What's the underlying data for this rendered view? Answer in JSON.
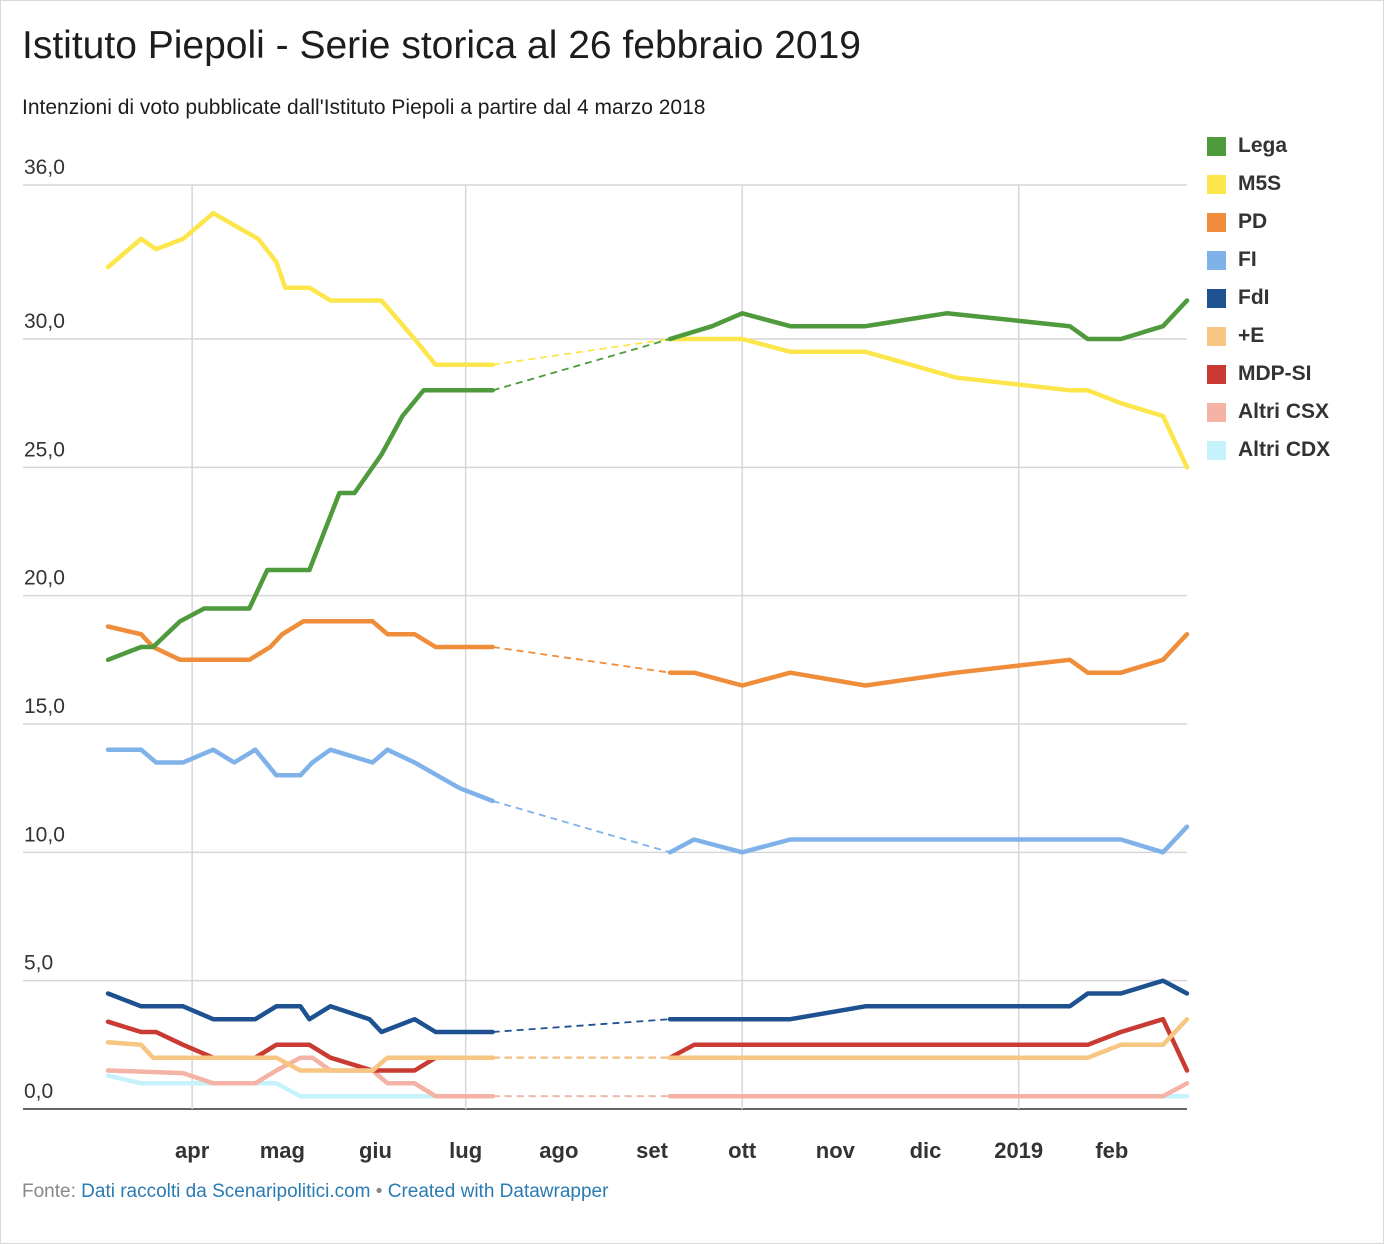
{
  "header": {
    "title": "Istituto Piepoli - Serie storica al 26 febbraio 2019",
    "subtitle": "Intenzioni di voto pubblicate dall'Istituto Piepoli a partire dal 4 marzo 2018"
  },
  "footer": {
    "source_prefix": "Fonte:",
    "source_link": "Dati raccolti da Scenaripolitici.com",
    "separator": "•",
    "credit_link": "Created with Datawrapper"
  },
  "chart_data": {
    "type": "line",
    "title": "Istituto Piepoli - Serie storica al 26 febbraio 2019",
    "subtitle": "Intenzioni di voto pubblicate dall'Istituto Piepoli a partire dal 4 marzo 2018",
    "xlabel": "",
    "ylabel": "",
    "x_range": [
      "2018-03-04",
      "2019-02-26"
    ],
    "ylim": [
      0,
      36
    ],
    "y_ticks": [
      0,
      5,
      10,
      15,
      20,
      25,
      30,
      36
    ],
    "y_tick_labels": [
      "0,0",
      "5,0",
      "10,0",
      "15,0",
      "20,0",
      "25,0",
      "30,0",
      "36,0"
    ],
    "x_ticks": [
      {
        "date": "2018-04-01",
        "label": "apr"
      },
      {
        "date": "2018-05-01",
        "label": "mag"
      },
      {
        "date": "2018-06-01",
        "label": "giu"
      },
      {
        "date": "2018-07-01",
        "label": "lug"
      },
      {
        "date": "2018-08-01",
        "label": "ago"
      },
      {
        "date": "2018-09-01",
        "label": "set"
      },
      {
        "date": "2018-10-01",
        "label": "ott"
      },
      {
        "date": "2018-11-01",
        "label": "nov"
      },
      {
        "date": "2018-12-01",
        "label": "dic"
      },
      {
        "date": "2019-01-01",
        "label": "2019"
      },
      {
        "date": "2019-02-01",
        "label": "feb"
      }
    ],
    "vertical_gridlines": [
      "2018-04-01",
      "2018-07-01",
      "2018-10-01",
      "2019-01-01"
    ],
    "gap": {
      "start": "2018-07-10",
      "end": "2018-09-07",
      "style": "dashed"
    },
    "legend_position": "right",
    "series": [
      {
        "name": "Lega",
        "color": "#4e9a3c",
        "points": [
          [
            "2018-03-04",
            17.5
          ],
          [
            "2018-03-15",
            18
          ],
          [
            "2018-03-19",
            18
          ],
          [
            "2018-03-28",
            19
          ],
          [
            "2018-04-05",
            19.5
          ],
          [
            "2018-04-20",
            19.5
          ],
          [
            "2018-04-26",
            21
          ],
          [
            "2018-05-10",
            21
          ],
          [
            "2018-05-20",
            24
          ],
          [
            "2018-05-25",
            24
          ],
          [
            "2018-06-03",
            25.5
          ],
          [
            "2018-06-10",
            27
          ],
          [
            "2018-06-17",
            28
          ],
          [
            "2018-07-10",
            28
          ],
          [
            "2018-09-07",
            30
          ],
          [
            "2018-09-21",
            30.5
          ],
          [
            "2018-10-01",
            31
          ],
          [
            "2018-10-17",
            30.5
          ],
          [
            "2018-11-11",
            30.5
          ],
          [
            "2018-12-08",
            31
          ],
          [
            "2019-01-18",
            30.5
          ],
          [
            "2019-01-24",
            30
          ],
          [
            "2019-02-04",
            30
          ],
          [
            "2019-02-18",
            30.5
          ],
          [
            "2019-02-26",
            31.5
          ]
        ]
      },
      {
        "name": "M5S",
        "color": "#fde64b",
        "points": [
          [
            "2018-03-04",
            32.8
          ],
          [
            "2018-03-15",
            33.9
          ],
          [
            "2018-03-20",
            33.5
          ],
          [
            "2018-03-29",
            33.9
          ],
          [
            "2018-04-08",
            34.9
          ],
          [
            "2018-04-23",
            33.9
          ],
          [
            "2018-04-29",
            33
          ],
          [
            "2018-05-02",
            32
          ],
          [
            "2018-05-10",
            32
          ],
          [
            "2018-05-17",
            31.5
          ],
          [
            "2018-06-03",
            31.5
          ],
          [
            "2018-06-14",
            30
          ],
          [
            "2018-06-21",
            29
          ],
          [
            "2018-07-10",
            29
          ],
          [
            "2018-09-07",
            30
          ],
          [
            "2018-10-01",
            30
          ],
          [
            "2018-10-17",
            29.5
          ],
          [
            "2018-11-11",
            29.5
          ],
          [
            "2018-12-11",
            28.5
          ],
          [
            "2019-01-18",
            28
          ],
          [
            "2019-01-24",
            28
          ],
          [
            "2019-02-04",
            27.5
          ],
          [
            "2019-02-18",
            27
          ],
          [
            "2019-02-26",
            25
          ]
        ]
      },
      {
        "name": "PD",
        "color": "#ef8d3b",
        "points": [
          [
            "2018-03-04",
            18.8
          ],
          [
            "2018-03-15",
            18.5
          ],
          [
            "2018-03-19",
            18
          ],
          [
            "2018-03-28",
            17.5
          ],
          [
            "2018-04-20",
            17.5
          ],
          [
            "2018-04-27",
            18
          ],
          [
            "2018-05-01",
            18.5
          ],
          [
            "2018-05-08",
            19
          ],
          [
            "2018-05-31",
            19
          ],
          [
            "2018-06-05",
            18.5
          ],
          [
            "2018-06-14",
            18.5
          ],
          [
            "2018-06-21",
            18
          ],
          [
            "2018-07-10",
            18
          ],
          [
            "2018-09-07",
            17
          ],
          [
            "2018-09-15",
            17
          ],
          [
            "2018-10-01",
            16.5
          ],
          [
            "2018-10-17",
            17
          ],
          [
            "2018-11-11",
            16.5
          ],
          [
            "2018-12-11",
            17
          ],
          [
            "2019-01-18",
            17.5
          ],
          [
            "2019-01-24",
            17
          ],
          [
            "2019-02-04",
            17
          ],
          [
            "2019-02-18",
            17.5
          ],
          [
            "2019-02-26",
            18.5
          ]
        ]
      },
      {
        "name": "FI",
        "color": "#80b2ea",
        "points": [
          [
            "2018-03-04",
            14
          ],
          [
            "2018-03-15",
            14
          ],
          [
            "2018-03-20",
            13.5
          ],
          [
            "2018-03-29",
            13.5
          ],
          [
            "2018-04-08",
            14
          ],
          [
            "2018-04-15",
            13.5
          ],
          [
            "2018-04-22",
            14
          ],
          [
            "2018-04-29",
            13
          ],
          [
            "2018-05-07",
            13
          ],
          [
            "2018-05-11",
            13.5
          ],
          [
            "2018-05-17",
            14
          ],
          [
            "2018-05-31",
            13.5
          ],
          [
            "2018-06-05",
            14
          ],
          [
            "2018-06-14",
            13.5
          ],
          [
            "2018-06-29",
            12.5
          ],
          [
            "2018-07-10",
            12
          ],
          [
            "2018-09-07",
            10
          ],
          [
            "2018-09-15",
            10.5
          ],
          [
            "2018-10-01",
            10
          ],
          [
            "2018-10-17",
            10.5
          ],
          [
            "2019-02-04",
            10.5
          ],
          [
            "2019-02-18",
            10
          ],
          [
            "2019-02-26",
            11
          ]
        ]
      },
      {
        "name": "FdI",
        "color": "#1e5190",
        "points": [
          [
            "2018-03-04",
            4.5
          ],
          [
            "2018-03-15",
            4
          ],
          [
            "2018-03-29",
            4
          ],
          [
            "2018-04-08",
            3.5
          ],
          [
            "2018-04-22",
            3.5
          ],
          [
            "2018-04-29",
            4
          ],
          [
            "2018-05-07",
            4
          ],
          [
            "2018-05-10",
            3.5
          ],
          [
            "2018-05-17",
            4
          ],
          [
            "2018-05-30",
            3.5
          ],
          [
            "2018-06-03",
            3
          ],
          [
            "2018-06-14",
            3.5
          ],
          [
            "2018-06-21",
            3
          ],
          [
            "2018-07-10",
            3
          ],
          [
            "2018-09-07",
            3.5
          ],
          [
            "2018-10-17",
            3.5
          ],
          [
            "2018-11-11",
            4
          ],
          [
            "2019-01-18",
            4
          ],
          [
            "2019-01-24",
            4.5
          ],
          [
            "2019-02-04",
            4.5
          ],
          [
            "2019-02-18",
            5
          ],
          [
            "2019-02-26",
            4.5
          ]
        ]
      },
      {
        "name": "+E",
        "color": "#f6c682",
        "points": [
          [
            "2018-03-04",
            2.6
          ],
          [
            "2018-03-15",
            2.5
          ],
          [
            "2018-03-19",
            2
          ],
          [
            "2018-04-22",
            2
          ],
          [
            "2018-04-29",
            2
          ],
          [
            "2018-05-07",
            1.5
          ],
          [
            "2018-05-31",
            1.5
          ],
          [
            "2018-06-05",
            2
          ],
          [
            "2018-06-21",
            2
          ],
          [
            "2018-07-10",
            2
          ],
          [
            "2018-09-07",
            2
          ],
          [
            "2019-01-24",
            2
          ],
          [
            "2019-02-04",
            2.5
          ],
          [
            "2019-02-18",
            2.5
          ],
          [
            "2019-02-26",
            3.5
          ]
        ]
      },
      {
        "name": "MDP-SI",
        "color": "#c83a32",
        "points": [
          [
            "2018-03-04",
            3.4
          ],
          [
            "2018-03-15",
            3
          ],
          [
            "2018-03-20",
            3
          ],
          [
            "2018-03-29",
            2.5
          ],
          [
            "2018-04-08",
            2
          ],
          [
            "2018-04-22",
            2
          ],
          [
            "2018-04-29",
            2.5
          ],
          [
            "2018-05-10",
            2.5
          ],
          [
            "2018-05-17",
            2
          ],
          [
            "2018-05-31",
            1.5
          ],
          [
            "2018-06-14",
            1.5
          ],
          [
            "2018-06-21",
            2
          ],
          [
            "2018-07-10",
            2
          ],
          [
            "2018-09-07",
            2
          ],
          [
            "2018-09-15",
            2.5
          ],
          [
            "2019-01-24",
            2.5
          ],
          [
            "2019-02-04",
            3
          ],
          [
            "2019-02-18",
            3.5
          ],
          [
            "2019-02-26",
            1.5
          ]
        ]
      },
      {
        "name": "Altri CSX",
        "color": "#f4b3a4",
        "points": [
          [
            "2018-03-04",
            1.5
          ],
          [
            "2018-03-29",
            1.4
          ],
          [
            "2018-04-08",
            1
          ],
          [
            "2018-04-22",
            1
          ],
          [
            "2018-04-29",
            1.5
          ],
          [
            "2018-05-07",
            2
          ],
          [
            "2018-05-11",
            2
          ],
          [
            "2018-05-17",
            1.5
          ],
          [
            "2018-05-31",
            1.5
          ],
          [
            "2018-06-05",
            1
          ],
          [
            "2018-06-14",
            1
          ],
          [
            "2018-06-21",
            0.5
          ],
          [
            "2018-07-10",
            0.5
          ],
          [
            "2018-09-07",
            0.5
          ],
          [
            "2019-02-18",
            0.5
          ],
          [
            "2019-02-26",
            1
          ]
        ]
      },
      {
        "name": "Altri CDX",
        "color": "#c6f2fb",
        "points": [
          [
            "2018-03-04",
            1.3
          ],
          [
            "2018-03-15",
            1
          ],
          [
            "2018-04-29",
            1
          ],
          [
            "2018-05-07",
            0.5
          ],
          [
            "2018-07-10",
            0.5
          ],
          [
            "2018-09-07",
            0.5
          ],
          [
            "2019-02-26",
            0.5
          ]
        ]
      }
    ]
  }
}
